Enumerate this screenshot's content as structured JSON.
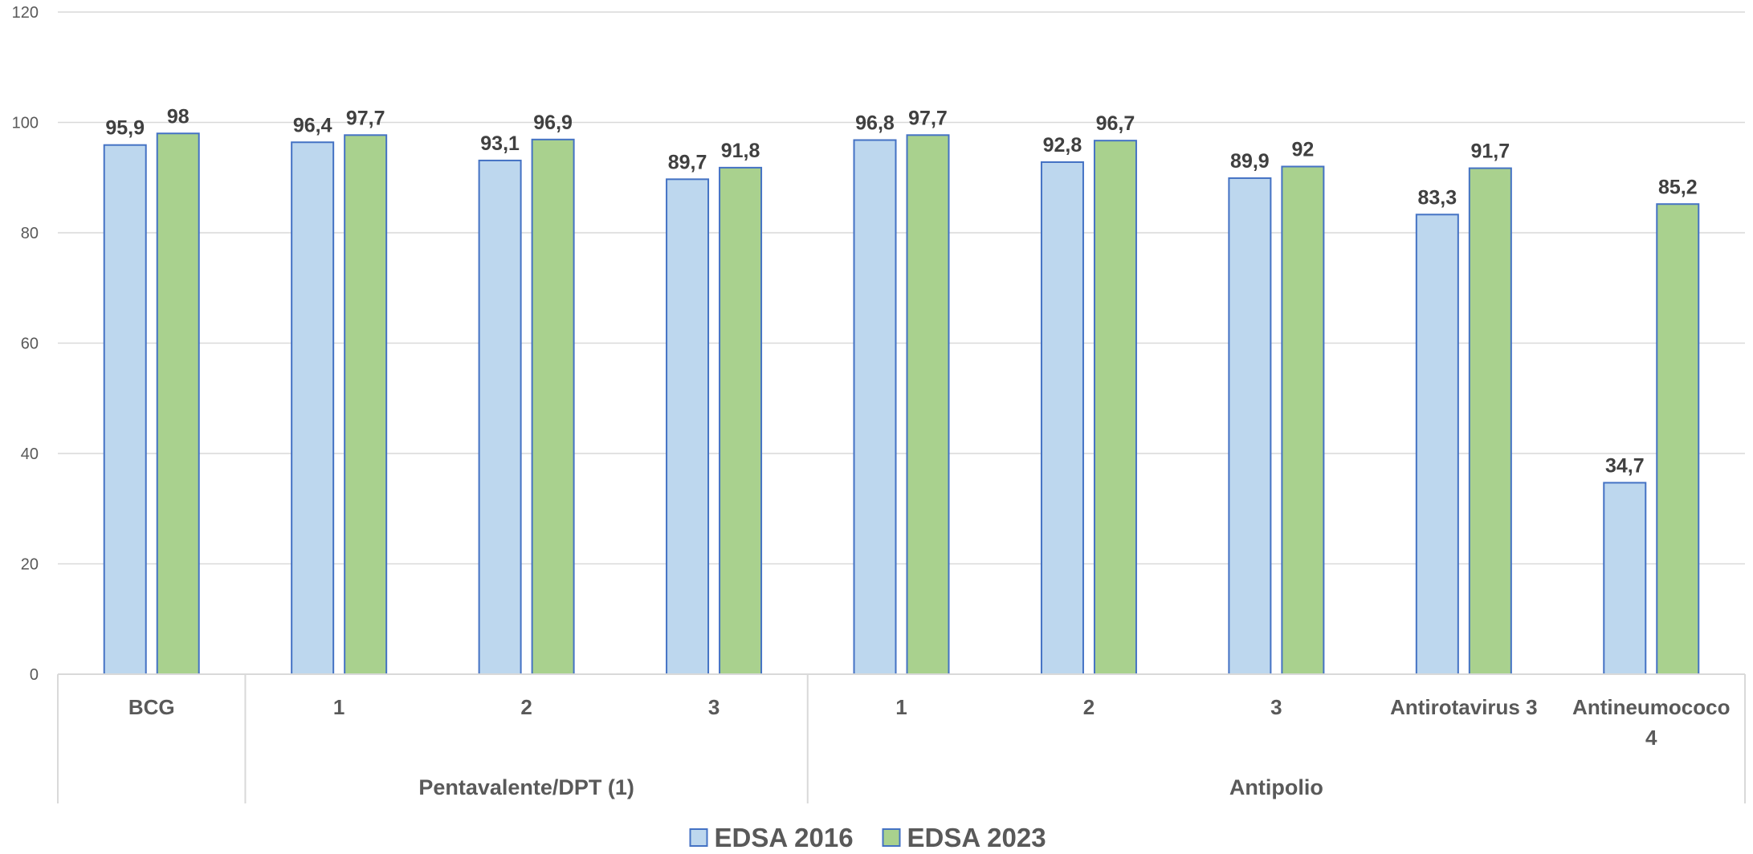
{
  "chart_data": {
    "type": "bar",
    "title": "",
    "xlabel": "",
    "ylabel": "",
    "ylim": [
      0,
      120
    ],
    "yticks": [
      "0",
      "20",
      "40",
      "60",
      "80",
      "100",
      "120"
    ],
    "grid": true,
    "legend_position": "bottom",
    "categories": [
      {
        "label": "BCG",
        "group": ""
      },
      {
        "label": "1",
        "group": "Pentavalente/DPT (1)"
      },
      {
        "label": "2",
        "group": "Pentavalente/DPT (1)"
      },
      {
        "label": "3",
        "group": "Pentavalente/DPT (1)"
      },
      {
        "label": "1",
        "group": "Antipolio"
      },
      {
        "label": "2",
        "group": "Antipolio"
      },
      {
        "label": "3",
        "group": "Antipolio"
      },
      {
        "label": "Antirotavirus 3",
        "group": "Antipolio"
      },
      {
        "label": "Antineumococo 4",
        "group": "Antipolio"
      }
    ],
    "category_label_lines": [
      [
        "BCG"
      ],
      [
        "1"
      ],
      [
        "2"
      ],
      [
        "3"
      ],
      [
        "1"
      ],
      [
        "2"
      ],
      [
        "3"
      ],
      [
        "Antirotavirus 3"
      ],
      [
        "Antineumococo",
        "4"
      ]
    ],
    "groups": [
      {
        "label": "",
        "span": 1
      },
      {
        "label": "Pentavalente/DPT (1)",
        "span": 3
      },
      {
        "label": "Antipolio",
        "span": 5
      }
    ],
    "series": [
      {
        "name": "EDSA 2016",
        "color": "#bdd7ee",
        "stroke": "#4472c4",
        "values": [
          95.9,
          96.4,
          93.1,
          89.7,
          96.8,
          92.8,
          89.9,
          83.3,
          34.7
        ],
        "labels": [
          "95,9",
          "96,4",
          "93,1",
          "89,7",
          "96,8",
          "92,8",
          "89,9",
          "83,3",
          "34,7"
        ]
      },
      {
        "name": "EDSA 2023",
        "color": "#a9d18e",
        "stroke": "#4472c4",
        "values": [
          98,
          97.7,
          96.9,
          91.8,
          97.7,
          96.7,
          92,
          91.7,
          85.2
        ],
        "labels": [
          "98",
          "97,7",
          "96,9",
          "91,8",
          "97,7",
          "96,7",
          "92",
          "91,7",
          "85,2"
        ]
      }
    ]
  }
}
